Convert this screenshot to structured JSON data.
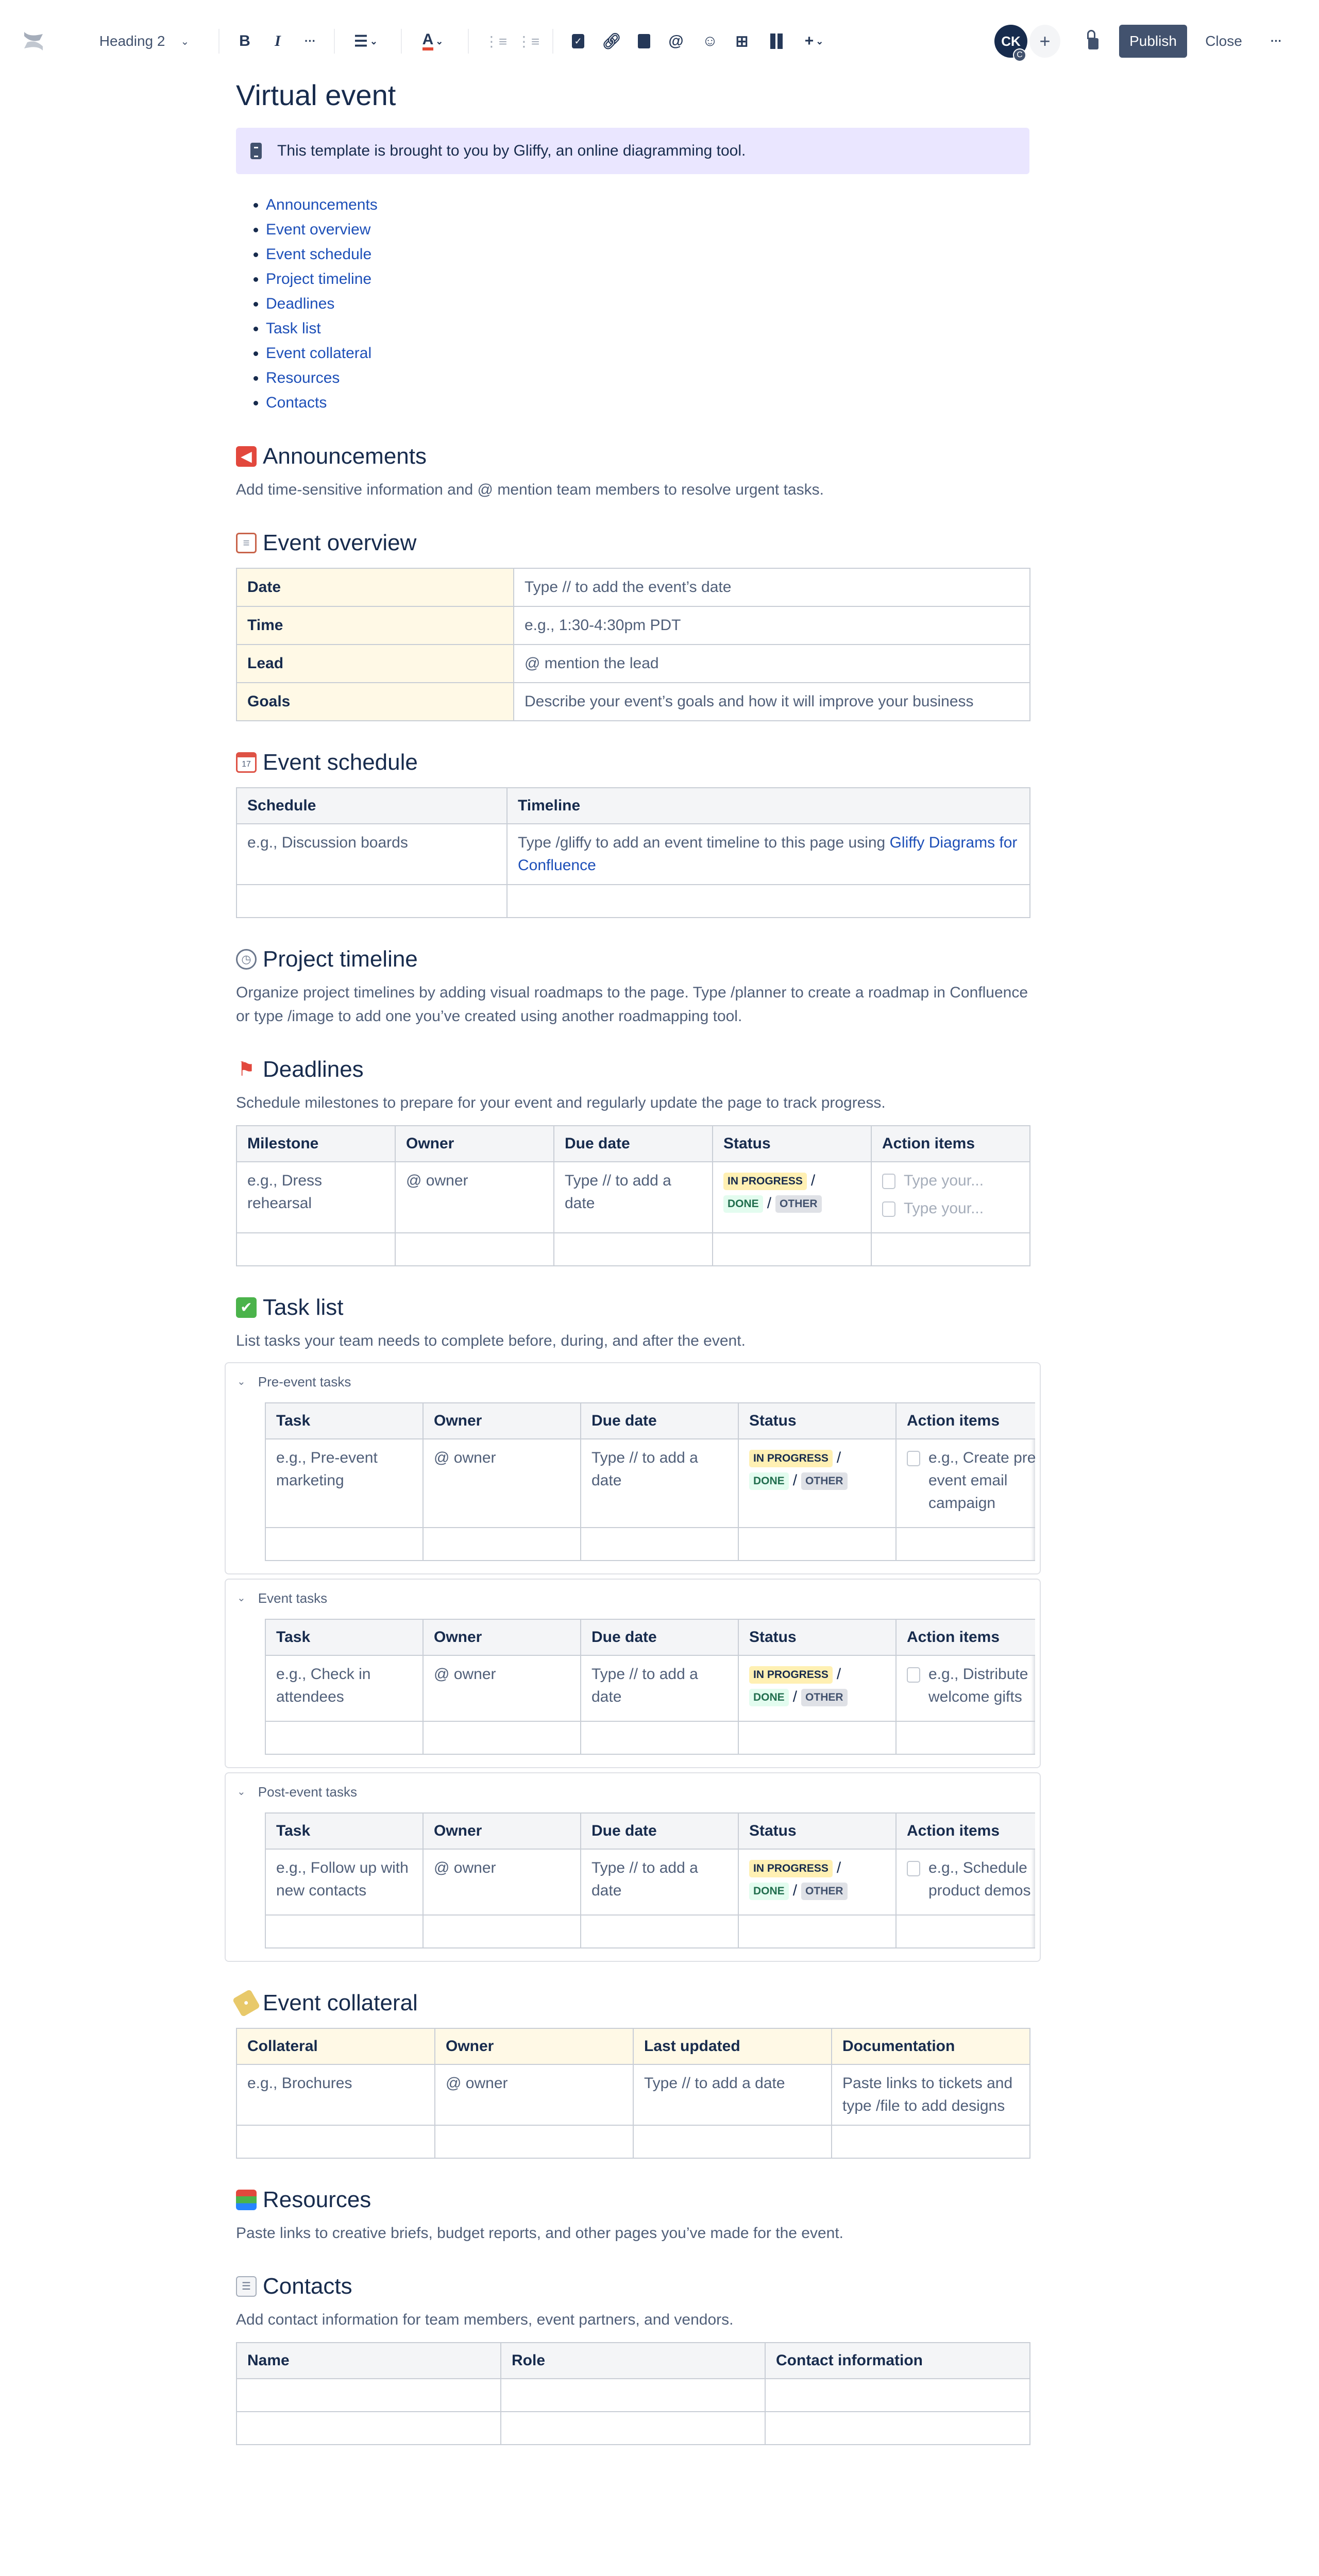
{
  "toolbar": {
    "text_style": "Heading 2",
    "bold": "B",
    "italic": "I",
    "more": "···",
    "text_color": "A",
    "avatar_initials": "CK",
    "avatar_badge": "C",
    "publish": "Publish",
    "close": "Close",
    "overflow": "···"
  },
  "page": {
    "title": "Virtual event",
    "panel_text": "This template is brought to you by Gliffy, an online diagramming tool.",
    "toc": [
      "Announcements",
      "Event overview",
      "Event schedule",
      "Project timeline",
      "Deadlines",
      "Task list",
      "Event collateral",
      "Resources",
      "Contacts"
    ]
  },
  "sections": {
    "announcements": {
      "icon": "megaphone-icon",
      "heading": "Announcements",
      "text": "Add time-sensitive information and @ mention team members to resolve urgent tasks."
    },
    "overview": {
      "icon": "clipboard-icon",
      "heading": "Event overview",
      "table": {
        "rows": [
          [
            "Date",
            "Type // to add the event’s date"
          ],
          [
            "Time",
            "e.g., 1:30-4:30pm PDT"
          ],
          [
            "Lead",
            "@ mention the lead"
          ],
          [
            "Goals",
            "Describe your event’s goals and how it will improve your business"
          ]
        ]
      }
    },
    "schedule": {
      "icon": "calendar-icon",
      "heading": "Event schedule",
      "table": {
        "headers": [
          "Schedule",
          "Timeline"
        ],
        "rows": [
          [
            "e.g., Discussion boards",
            {
              "text": "Type /gliffy to add an event timeline to this page using ",
              "link": "Gliffy Diagrams for Confluence"
            }
          ],
          [
            "",
            ""
          ]
        ]
      }
    },
    "timeline": {
      "icon": "clock-icon",
      "heading": "Project timeline",
      "text": "Organize project timelines by adding visual roadmaps to the page. Type /planner to create a roadmap in Confluence or type /image to add one you’ve created using another roadmapping tool."
    },
    "deadlines": {
      "icon": "red-flag-icon",
      "heading": "Deadlines",
      "text": "Schedule milestones to prepare for your event and regularly update the page to track progress.",
      "table": {
        "headers": [
          "Milestone",
          "Owner",
          "Due date",
          "Status",
          "Action items"
        ],
        "rows": [
          [
            "e.g., Dress rehearsal",
            "@ owner",
            "Type // to add a date",
            {
              "status": [
                "IN PROGRESS",
                "DONE",
                "OTHER"
              ]
            },
            {
              "tasks": [
                "Type your...",
                "Type your..."
              ],
              "placeholder": true
            }
          ],
          [
            "",
            "",
            "",
            "",
            ""
          ]
        ]
      }
    },
    "tasklist": {
      "icon": "check-mark-icon",
      "heading": "Task list",
      "text": "List tasks your team needs to complete before, during, and after the event.",
      "expands": [
        {
          "title": "Pre-event tasks",
          "table": {
            "headers": [
              "Task",
              "Owner",
              "Due date",
              "Status",
              "Action items"
            ],
            "rows": [
              [
                "e.g., Pre-event marketing",
                "@ owner",
                "Type // to add a date",
                {
                  "status": [
                    "IN PROGRESS",
                    "DONE",
                    "OTHER"
                  ]
                },
                {
                  "tasks": [
                    "e.g., Create pre-event email campaign"
                  ]
                }
              ],
              [
                "",
                "",
                "",
                "",
                ""
              ]
            ]
          }
        },
        {
          "title": "Event tasks",
          "table": {
            "headers": [
              "Task",
              "Owner",
              "Due date",
              "Status",
              "Action items"
            ],
            "rows": [
              [
                "e.g., Check in attendees",
                "@ owner",
                "Type // to add a date",
                {
                  "status": [
                    "IN PROGRESS",
                    "DONE",
                    "OTHER"
                  ]
                },
                {
                  "tasks": [
                    "e.g., Distribute welcome gifts"
                  ]
                }
              ],
              [
                "",
                "",
                "",
                "",
                ""
              ]
            ]
          }
        },
        {
          "title": "Post-event tasks",
          "table": {
            "headers": [
              "Task",
              "Owner",
              "Due date",
              "Status",
              "Action items"
            ],
            "rows": [
              [
                "e.g., Follow up with new contacts",
                "@ owner",
                "Type // to add a date",
                {
                  "status": [
                    "IN PROGRESS",
                    "DONE",
                    "OTHER"
                  ]
                },
                {
                  "tasks": [
                    "e.g., Schedule product demos"
                  ]
                }
              ],
              [
                "",
                "",
                "",
                "",
                ""
              ]
            ]
          }
        }
      ]
    },
    "collateral": {
      "icon": "label-icon",
      "heading": "Event collateral",
      "table": {
        "headers": [
          "Collateral",
          "Owner",
          "Last updated",
          "Documentation"
        ],
        "rows": [
          [
            "e.g., Brochures",
            "@ owner",
            "Type // to add a date",
            "Paste links to tickets and type /file to add designs"
          ],
          [
            "",
            "",
            "",
            ""
          ]
        ]
      }
    },
    "resources": {
      "icon": "books-icon",
      "heading": "Resources",
      "text": "Paste links to creative briefs, budget reports, and other pages you’ve made for the event."
    },
    "contacts": {
      "icon": "card-index-icon",
      "heading": "Contacts",
      "text": "Add contact information for team members, event partners, and vendors.",
      "table": {
        "headers": [
          "Name",
          "Role",
          "Contact information"
        ],
        "rows": [
          [
            "",
            "",
            ""
          ],
          [
            "",
            "",
            ""
          ]
        ]
      }
    }
  },
  "colors": {
    "accent": "#42526E",
    "panel": "#EAE6FF",
    "link": "#1D4FB8",
    "header_gray": "#F4F5F7",
    "header_yellow": "#FFF9E6",
    "in_progress": "#FFF0B3",
    "done": "#E3FCEF",
    "other": "#DFE1E6"
  }
}
